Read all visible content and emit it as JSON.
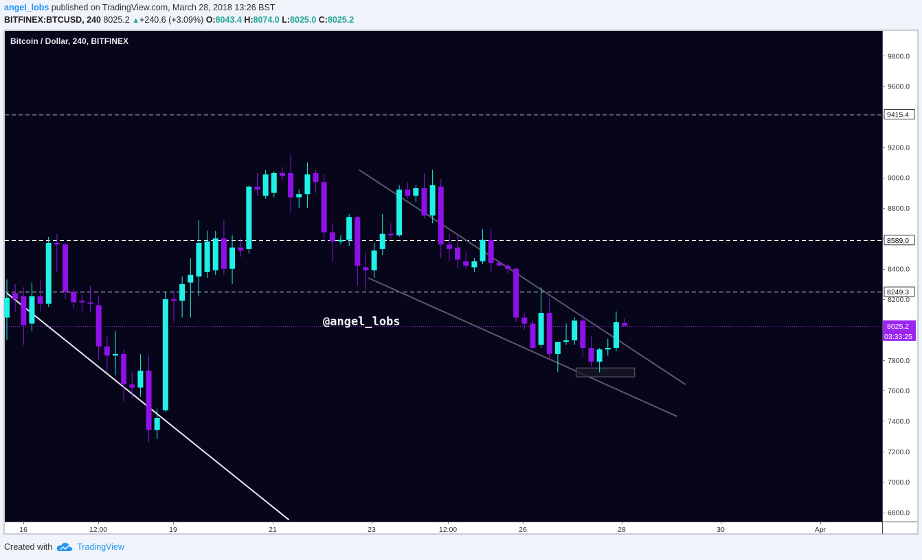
{
  "header": {
    "user": "angel_lobs",
    "published_text": "published on TradingView.com, March 28, 2018 13:26 BST",
    "symbol": "BITFINEX:BTCUSD, 240",
    "last": "8025.2",
    "change": "+240.6 (+3.09%)",
    "o_label": "O:",
    "o_value": "8043.4",
    "h_label": "H:",
    "h_value": "8074.0",
    "l_label": "L:",
    "l_value": "8025.0",
    "c_label": "C:",
    "c_value": "8025.2"
  },
  "footer": {
    "created_with": "Created with",
    "brand": "TradingView"
  },
  "colors": {
    "background": "#07051a",
    "up": "#22f0e6",
    "down": "#8e11e8",
    "grid_dashed": "#ffffff",
    "current_price": "#9a25f0"
  },
  "chart_data": {
    "type": "candlestick",
    "title": "Bitcoin / Dollar, 240, BITFINEX",
    "watermark": "@angel_lobs",
    "ylim": [
      6750,
      9950
    ],
    "y_ticks": [
      "6800.0",
      "7000.0",
      "7200.0",
      "7400.0",
      "7600.0",
      "7800.0",
      "8000.0",
      "8200.0",
      "8400.0",
      "8600.0",
      "8800.0",
      "9000.0",
      "9200.0",
      "9400.0",
      "9600.0",
      "9800.0"
    ],
    "x_ticks": [
      "16",
      "12:00",
      "19",
      "21",
      "23",
      "12:00",
      "26",
      "28",
      "30",
      "Apr"
    ],
    "horizontal_levels": [
      {
        "label": "9415.4",
        "value": 9415.4
      },
      {
        "label": "8589.0",
        "value": 8589.0
      },
      {
        "label": "8249.3",
        "value": 8249.3
      }
    ],
    "current_price": {
      "label": "8025.2",
      "value": 8025.2,
      "countdown": "03:33:25"
    },
    "candles": [
      {
        "o": 8080,
        "h": 8330,
        "l": 7930,
        "c": 8210
      },
      {
        "o": 8240,
        "h": 8300,
        "l": 8120,
        "c": 8200
      },
      {
        "o": 8220,
        "h": 8280,
        "l": 7900,
        "c": 8030
      },
      {
        "o": 8040,
        "h": 8310,
        "l": 7990,
        "c": 8220
      },
      {
        "o": 8220,
        "h": 8330,
        "l": 8120,
        "c": 8170
      },
      {
        "o": 8170,
        "h": 8610,
        "l": 8150,
        "c": 8570
      },
      {
        "o": 8570,
        "h": 8630,
        "l": 8380,
        "c": 8560
      },
      {
        "o": 8560,
        "h": 8570,
        "l": 8200,
        "c": 8250
      },
      {
        "o": 8250,
        "h": 8270,
        "l": 8140,
        "c": 8180
      },
      {
        "o": 8190,
        "h": 8230,
        "l": 8110,
        "c": 8180
      },
      {
        "o": 8180,
        "h": 8290,
        "l": 8120,
        "c": 8170
      },
      {
        "o": 8160,
        "h": 8220,
        "l": 7800,
        "c": 7890
      },
      {
        "o": 7890,
        "h": 7960,
        "l": 7720,
        "c": 7830
      },
      {
        "o": 7830,
        "h": 7990,
        "l": 7700,
        "c": 7840
      },
      {
        "o": 7840,
        "h": 7870,
        "l": 7530,
        "c": 7640
      },
      {
        "o": 7640,
        "h": 7720,
        "l": 7550,
        "c": 7620
      },
      {
        "o": 7620,
        "h": 7840,
        "l": 7560,
        "c": 7730
      },
      {
        "o": 7730,
        "h": 7830,
        "l": 7260,
        "c": 7340
      },
      {
        "o": 7340,
        "h": 7480,
        "l": 7280,
        "c": 7420
      },
      {
        "o": 7470,
        "h": 8250,
        "l": 7460,
        "c": 8200
      },
      {
        "o": 8200,
        "h": 8260,
        "l": 8050,
        "c": 8190
      },
      {
        "o": 8190,
        "h": 8350,
        "l": 8080,
        "c": 8300
      },
      {
        "o": 8310,
        "h": 8470,
        "l": 8080,
        "c": 8360
      },
      {
        "o": 8350,
        "h": 8720,
        "l": 8220,
        "c": 8570
      },
      {
        "o": 8380,
        "h": 8650,
        "l": 8340,
        "c": 8580
      },
      {
        "o": 8390,
        "h": 8650,
        "l": 8360,
        "c": 8600
      },
      {
        "o": 8600,
        "h": 8720,
        "l": 8360,
        "c": 8400
      },
      {
        "o": 8400,
        "h": 8620,
        "l": 8300,
        "c": 8540
      },
      {
        "o": 8540,
        "h": 8600,
        "l": 8480,
        "c": 8520
      },
      {
        "o": 8530,
        "h": 8950,
        "l": 8500,
        "c": 8940
      },
      {
        "o": 8940,
        "h": 9030,
        "l": 8880,
        "c": 8920
      },
      {
        "o": 8880,
        "h": 9050,
        "l": 8860,
        "c": 9020
      },
      {
        "o": 8900,
        "h": 9040,
        "l": 8870,
        "c": 9030
      },
      {
        "o": 9030,
        "h": 9070,
        "l": 8980,
        "c": 9010
      },
      {
        "o": 9030,
        "h": 9150,
        "l": 8770,
        "c": 8870
      },
      {
        "o": 8870,
        "h": 8920,
        "l": 8800,
        "c": 8890
      },
      {
        "o": 8890,
        "h": 9100,
        "l": 8800,
        "c": 9020
      },
      {
        "o": 9030,
        "h": 9050,
        "l": 8900,
        "c": 8970
      },
      {
        "o": 8970,
        "h": 9020,
        "l": 8580,
        "c": 8640
      },
      {
        "o": 8640,
        "h": 8700,
        "l": 8450,
        "c": 8580
      },
      {
        "o": 8580,
        "h": 8620,
        "l": 8560,
        "c": 8590
      },
      {
        "o": 8590,
        "h": 8760,
        "l": 8550,
        "c": 8740
      },
      {
        "o": 8740,
        "h": 8750,
        "l": 8290,
        "c": 8420
      },
      {
        "o": 8410,
        "h": 8510,
        "l": 8260,
        "c": 8390
      },
      {
        "o": 8390,
        "h": 8570,
        "l": 8340,
        "c": 8520
      },
      {
        "o": 8530,
        "h": 8760,
        "l": 8490,
        "c": 8630
      },
      {
        "o": 8630,
        "h": 8700,
        "l": 8600,
        "c": 8620
      },
      {
        "o": 8620,
        "h": 8950,
        "l": 8610,
        "c": 8920
      },
      {
        "o": 8920,
        "h": 8970,
        "l": 8860,
        "c": 8880
      },
      {
        "o": 8880,
        "h": 8950,
        "l": 8840,
        "c": 8930
      },
      {
        "o": 8930,
        "h": 9030,
        "l": 8730,
        "c": 8750
      },
      {
        "o": 8750,
        "h": 9050,
        "l": 8700,
        "c": 8950
      },
      {
        "o": 8940,
        "h": 8990,
        "l": 8470,
        "c": 8560
      },
      {
        "o": 8560,
        "h": 8630,
        "l": 8450,
        "c": 8530
      },
      {
        "o": 8540,
        "h": 8630,
        "l": 8400,
        "c": 8460
      },
      {
        "o": 8450,
        "h": 8510,
        "l": 8400,
        "c": 8420
      },
      {
        "o": 8410,
        "h": 8470,
        "l": 8380,
        "c": 8450
      },
      {
        "o": 8450,
        "h": 8660,
        "l": 8430,
        "c": 8590
      },
      {
        "o": 8590,
        "h": 8660,
        "l": 8380,
        "c": 8440
      },
      {
        "o": 8440,
        "h": 8450,
        "l": 8420,
        "c": 8420
      },
      {
        "o": 8420,
        "h": 8430,
        "l": 8370,
        "c": 8400
      },
      {
        "o": 8400,
        "h": 8410,
        "l": 8050,
        "c": 8080
      },
      {
        "o": 8080,
        "h": 8110,
        "l": 8000,
        "c": 8040
      },
      {
        "o": 8040,
        "h": 8060,
        "l": 7870,
        "c": 7880
      },
      {
        "o": 7900,
        "h": 8280,
        "l": 7880,
        "c": 8110
      },
      {
        "o": 8110,
        "h": 8210,
        "l": 7800,
        "c": 7840
      },
      {
        "o": 7840,
        "h": 7920,
        "l": 7720,
        "c": 7920
      },
      {
        "o": 7920,
        "h": 8040,
        "l": 7900,
        "c": 7930
      },
      {
        "o": 7930,
        "h": 8080,
        "l": 7900,
        "c": 8060
      },
      {
        "o": 8060,
        "h": 8100,
        "l": 7820,
        "c": 7880
      },
      {
        "o": 7880,
        "h": 7960,
        "l": 7760,
        "c": 7790
      },
      {
        "o": 7790,
        "h": 7880,
        "l": 7720,
        "c": 7870
      },
      {
        "o": 7870,
        "h": 7940,
        "l": 7830,
        "c": 7880
      },
      {
        "o": 7880,
        "h": 8120,
        "l": 7860,
        "c": 8050
      },
      {
        "o": 8043.4,
        "h": 8074,
        "l": 8025,
        "c": 8025.2
      }
    ],
    "drawings": [
      {
        "type": "trendline",
        "from": {
          "t": 0,
          "p": 8240
        },
        "to": {
          "t": 33.8,
          "p": 6750
        },
        "color": "#e8e8f0"
      },
      {
        "type": "trendline",
        "from": {
          "t": 42.2,
          "p": 9050
        },
        "to": {
          "t": 81.3,
          "p": 7640
        },
        "color": "#5a5a66"
      },
      {
        "type": "trendline",
        "from": {
          "t": 43.3,
          "p": 8340
        },
        "to": {
          "t": 80.3,
          "p": 7430
        },
        "color": "#5a5a66"
      },
      {
        "type": "rectangle",
        "t1": 68.2,
        "t2": 75.2,
        "p1": 7748,
        "p2": 7690,
        "color": "#4a4a55"
      }
    ]
  }
}
